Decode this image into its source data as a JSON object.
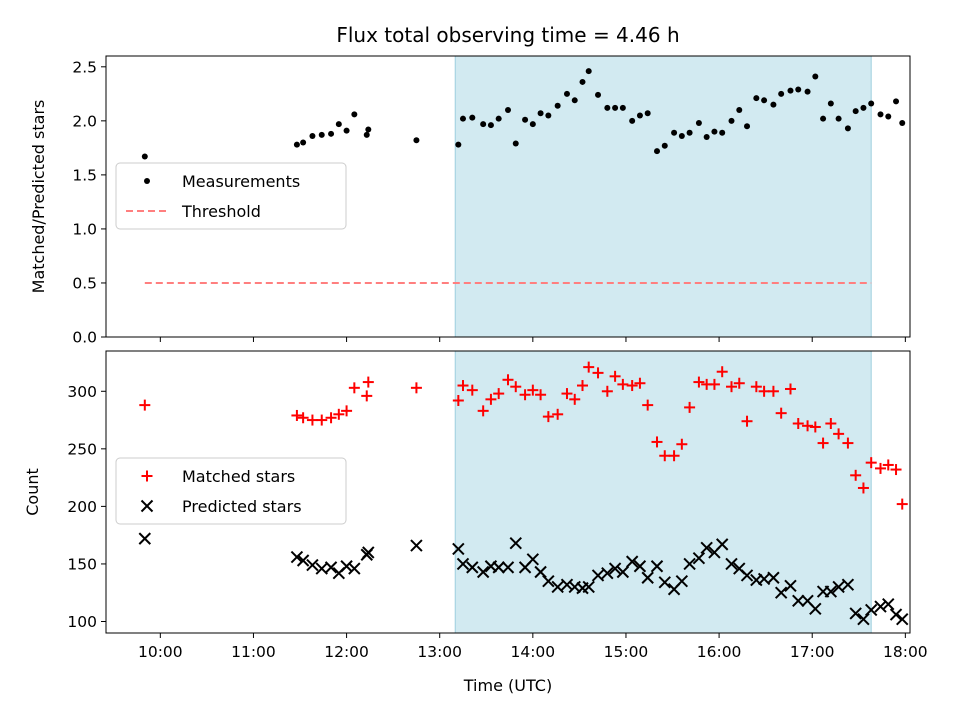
{
  "chart_data": [
    {
      "type": "scatter",
      "title": "Flux total observing time = 4.46 h",
      "ylabel": "Matched/Predicted stars",
      "ylim": [
        0,
        2.6
      ],
      "yticks": [
        "0.0",
        "0.5",
        "1.0",
        "1.5",
        "2.0",
        "2.5"
      ],
      "shaded_region": {
        "x0": "13:10",
        "x1": "17:38",
        "color": "#add8e6"
      },
      "legend": {
        "position": "center-left",
        "entries": [
          "Measurements",
          "Threshold"
        ]
      },
      "series": [
        {
          "name": "Measurements",
          "marker": "dot",
          "color": "#000000",
          "points": [
            [
              "09:50",
              1.67
            ],
            [
              "11:28",
              1.78
            ],
            [
              "11:32",
              1.8
            ],
            [
              "11:38",
              1.86
            ],
            [
              "11:44",
              1.87
            ],
            [
              "11:50",
              1.88
            ],
            [
              "11:55",
              1.97
            ],
            [
              "12:00",
              1.91
            ],
            [
              "12:05",
              2.06
            ],
            [
              "12:13",
              1.87
            ],
            [
              "12:14",
              1.92
            ],
            [
              "12:45",
              1.82
            ],
            [
              "13:12",
              1.78
            ],
            [
              "13:15",
              2.02
            ],
            [
              "13:21",
              2.03
            ],
            [
              "13:28",
              1.97
            ],
            [
              "13:33",
              1.96
            ],
            [
              "13:38",
              2.02
            ],
            [
              "13:44",
              2.1
            ],
            [
              "13:49",
              1.79
            ],
            [
              "13:55",
              2.01
            ],
            [
              "14:00",
              1.97
            ],
            [
              "14:05",
              2.07
            ],
            [
              "14:10",
              2.05
            ],
            [
              "14:16",
              2.14
            ],
            [
              "14:22",
              2.25
            ],
            [
              "14:27",
              2.19
            ],
            [
              "14:32",
              2.36
            ],
            [
              "14:36",
              2.46
            ],
            [
              "14:42",
              2.24
            ],
            [
              "14:48",
              2.12
            ],
            [
              "14:53",
              2.12
            ],
            [
              "14:58",
              2.12
            ],
            [
              "15:04",
              2.0
            ],
            [
              "15:09",
              2.05
            ],
            [
              "15:14",
              2.07
            ],
            [
              "15:20",
              1.72
            ],
            [
              "15:25",
              1.77
            ],
            [
              "15:31",
              1.89
            ],
            [
              "15:36",
              1.86
            ],
            [
              "15:41",
              1.89
            ],
            [
              "15:47",
              1.98
            ],
            [
              "15:52",
              1.85
            ],
            [
              "15:57",
              1.9
            ],
            [
              "16:02",
              1.89
            ],
            [
              "16:08",
              2.0
            ],
            [
              "16:13",
              2.1
            ],
            [
              "16:18",
              1.95
            ],
            [
              "16:24",
              2.21
            ],
            [
              "16:29",
              2.19
            ],
            [
              "16:35",
              2.15
            ],
            [
              "16:40",
              2.25
            ],
            [
              "16:46",
              2.28
            ],
            [
              "16:51",
              2.29
            ],
            [
              "16:57",
              2.27
            ],
            [
              "17:02",
              2.41
            ],
            [
              "17:07",
              2.02
            ],
            [
              "17:12",
              2.16
            ],
            [
              "17:17",
              2.02
            ],
            [
              "17:23",
              1.93
            ],
            [
              "17:28",
              2.09
            ],
            [
              "17:33",
              2.12
            ],
            [
              "17:38",
              2.16
            ],
            [
              "17:44",
              2.06
            ],
            [
              "17:49",
              2.04
            ],
            [
              "17:54",
              2.18
            ],
            [
              "17:58",
              1.98
            ]
          ]
        },
        {
          "name": "Threshold",
          "type": "line",
          "style": "dashed",
          "color": "#ff7f7f",
          "points": [
            [
              "09:50",
              0.5
            ],
            [
              "17:38",
              0.5
            ]
          ]
        }
      ]
    },
    {
      "type": "scatter",
      "xlabel": "Time (UTC)",
      "ylabel": "Count",
      "ylim": [
        90,
        335
      ],
      "yticks": [
        "100",
        "150",
        "200",
        "250",
        "300"
      ],
      "xticks": [
        "10:00",
        "11:00",
        "12:00",
        "13:00",
        "14:00",
        "15:00",
        "16:00",
        "17:00",
        "18:00"
      ],
      "shaded_region": {
        "x0": "13:10",
        "x1": "17:38",
        "color": "#add8e6"
      },
      "legend": {
        "position": "center-left",
        "entries": [
          "Matched stars",
          "Predicted stars"
        ]
      },
      "series": [
        {
          "name": "Matched stars",
          "marker": "plus",
          "color": "#ff0000",
          "points": [
            [
              "09:50",
              288
            ],
            [
              "11:28",
              279
            ],
            [
              "11:32",
              277
            ],
            [
              "11:38",
              275
            ],
            [
              "11:44",
              275
            ],
            [
              "11:50",
              277
            ],
            [
              "11:55",
              280
            ],
            [
              "12:00",
              283
            ],
            [
              "12:05",
              303
            ],
            [
              "12:13",
              296
            ],
            [
              "12:14",
              308
            ],
            [
              "12:45",
              303
            ],
            [
              "13:12",
              292
            ],
            [
              "13:15",
              305
            ],
            [
              "13:21",
              301
            ],
            [
              "13:28",
              283
            ],
            [
              "13:33",
              293
            ],
            [
              "13:38",
              298
            ],
            [
              "13:44",
              310
            ],
            [
              "13:49",
              304
            ],
            [
              "13:55",
              297
            ],
            [
              "14:00",
              301
            ],
            [
              "14:05",
              297
            ],
            [
              "14:10",
              278
            ],
            [
              "14:16",
              280
            ],
            [
              "14:22",
              298
            ],
            [
              "14:27",
              293
            ],
            [
              "14:32",
              305
            ],
            [
              "14:36",
              321
            ],
            [
              "14:42",
              316
            ],
            [
              "14:48",
              300
            ],
            [
              "14:53",
              313
            ],
            [
              "14:58",
              306
            ],
            [
              "15:04",
              305
            ],
            [
              "15:09",
              307
            ],
            [
              "15:14",
              288
            ],
            [
              "15:20",
              256
            ],
            [
              "15:25",
              244
            ],
            [
              "15:31",
              244
            ],
            [
              "15:36",
              254
            ],
            [
              "15:41",
              286
            ],
            [
              "15:47",
              308
            ],
            [
              "15:52",
              306
            ],
            [
              "15:57",
              306
            ],
            [
              "16:02",
              317
            ],
            [
              "16:08",
              304
            ],
            [
              "16:13",
              307
            ],
            [
              "16:18",
              274
            ],
            [
              "16:24",
              304
            ],
            [
              "16:29",
              300
            ],
            [
              "16:35",
              300
            ],
            [
              "16:40",
              281
            ],
            [
              "16:46",
              302
            ],
            [
              "16:51",
              272
            ],
            [
              "16:57",
              270
            ],
            [
              "17:02",
              269
            ],
            [
              "17:07",
              255
            ],
            [
              "17:12",
              272
            ],
            [
              "17:17",
              263
            ],
            [
              "17:23",
              255
            ],
            [
              "17:28",
              227
            ],
            [
              "17:33",
              216
            ],
            [
              "17:38",
              238
            ],
            [
              "17:44",
              233
            ],
            [
              "17:49",
              236
            ],
            [
              "17:54",
              232
            ],
            [
              "17:58",
              202
            ]
          ]
        },
        {
          "name": "Predicted stars",
          "marker": "x",
          "color": "#000000",
          "points": [
            [
              "09:50",
              172
            ],
            [
              "11:28",
              156
            ],
            [
              "11:32",
              153
            ],
            [
              "11:38",
              149
            ],
            [
              "11:44",
              146
            ],
            [
              "11:50",
              147
            ],
            [
              "11:55",
              142
            ],
            [
              "12:00",
              148
            ],
            [
              "12:05",
              146
            ],
            [
              "12:13",
              158
            ],
            [
              "12:14",
              160
            ],
            [
              "12:45",
              166
            ],
            [
              "13:12",
              163
            ],
            [
              "13:15",
              150
            ],
            [
              "13:21",
              147
            ],
            [
              "13:28",
              143
            ],
            [
              "13:33",
              148
            ],
            [
              "13:38",
              147
            ],
            [
              "13:44",
              147
            ],
            [
              "13:49",
              168
            ],
            [
              "13:55",
              147
            ],
            [
              "14:00",
              154
            ],
            [
              "14:05",
              143
            ],
            [
              "14:10",
              135
            ],
            [
              "14:16",
              130
            ],
            [
              "14:22",
              132
            ],
            [
              "14:27",
              130
            ],
            [
              "14:32",
              129
            ],
            [
              "14:36",
              130
            ],
            [
              "14:42",
              140
            ],
            [
              "14:48",
              142
            ],
            [
              "14:53",
              146
            ],
            [
              "14:58",
              143
            ],
            [
              "15:04",
              152
            ],
            [
              "15:09",
              148
            ],
            [
              "15:14",
              138
            ],
            [
              "15:20",
              148
            ],
            [
              "15:25",
              134
            ],
            [
              "15:31",
              128
            ],
            [
              "15:36",
              135
            ],
            [
              "15:41",
              150
            ],
            [
              "15:47",
              155
            ],
            [
              "15:52",
              164
            ],
            [
              "15:57",
              160
            ],
            [
              "16:02",
              167
            ],
            [
              "16:08",
              150
            ],
            [
              "16:13",
              146
            ],
            [
              "16:18",
              140
            ],
            [
              "16:24",
              136
            ],
            [
              "16:29",
              137
            ],
            [
              "16:35",
              138
            ],
            [
              "16:40",
              125
            ],
            [
              "16:46",
              131
            ],
            [
              "16:51",
              118
            ],
            [
              "16:57",
              118
            ],
            [
              "17:02",
              111
            ],
            [
              "17:07",
              126
            ],
            [
              "17:12",
              126
            ],
            [
              "17:17",
              130
            ],
            [
              "17:23",
              132
            ],
            [
              "17:28",
              107
            ],
            [
              "17:33",
              102
            ],
            [
              "17:38",
              110
            ],
            [
              "17:44",
              113
            ],
            [
              "17:49",
              115
            ],
            [
              "17:54",
              106
            ],
            [
              "17:58",
              102
            ]
          ]
        }
      ]
    }
  ]
}
